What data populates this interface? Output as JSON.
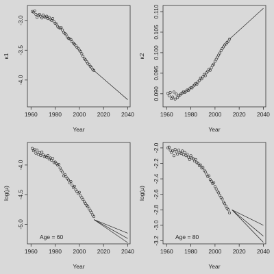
{
  "chart_data": [
    {
      "type": "scatter",
      "xlabel": "Year",
      "ylabel": "κ1",
      "xlim": [
        1957,
        2042
      ],
      "ylim": [
        -4.45,
        -2.75
      ],
      "xticks": [
        1960,
        1980,
        2000,
        2020,
        2040
      ],
      "yticks": [
        -3.0,
        -3.5,
        -4.0
      ],
      "ytick_labels": [
        "-3.0",
        "-3.5",
        "-4.0"
      ],
      "series": [
        {
          "kind": "points",
          "x": [
            1961,
            1962,
            1963,
            1964,
            1965,
            1966,
            1967,
            1968,
            1969,
            1970,
            1971,
            1972,
            1973,
            1974,
            1975,
            1976,
            1977,
            1978,
            1979,
            1980,
            1981,
            1982,
            1983,
            1984,
            1985,
            1986,
            1987,
            1988,
            1989,
            1990,
            1991,
            1992,
            1993,
            1994,
            1995,
            1996,
            1997,
            1998,
            1999,
            2000,
            2001,
            2002,
            2003,
            2004,
            2005,
            2006,
            2007,
            2008,
            2009,
            2010,
            2011,
            2012
          ],
          "y": [
            -2.85,
            -2.86,
            -2.84,
            -2.9,
            -2.95,
            -2.92,
            -2.9,
            -2.93,
            -2.96,
            -2.91,
            -2.94,
            -2.95,
            -2.93,
            -2.97,
            -2.95,
            -2.98,
            -3.0,
            -2.97,
            -3.02,
            -3.05,
            -3.06,
            -3.1,
            -3.12,
            -3.13,
            -3.12,
            -3.16,
            -3.2,
            -3.22,
            -3.24,
            -3.28,
            -3.3,
            -3.31,
            -3.32,
            -3.36,
            -3.38,
            -3.4,
            -3.42,
            -3.45,
            -3.47,
            -3.5,
            -3.52,
            -3.56,
            -3.6,
            -3.64,
            -3.66,
            -3.69,
            -3.72,
            -3.74,
            -3.77,
            -3.79,
            -3.82,
            -3.84
          ]
        },
        {
          "kind": "line",
          "x": [
            2012,
            2040
          ],
          "y": [
            -3.84,
            -4.33
          ]
        }
      ]
    },
    {
      "type": "scatter",
      "xlabel": "Year",
      "ylabel": "κ2",
      "xlim": [
        1957,
        2042
      ],
      "ylim": [
        0.0868,
        0.1115
      ],
      "xticks": [
        1960,
        1980,
        2000,
        2020,
        2040
      ],
      "yticks": [
        0.09,
        0.095,
        0.1,
        0.105,
        0.11
      ],
      "ytick_labels": [
        "0.090",
        "0.095",
        "0.100",
        "0.105",
        "0.110"
      ],
      "series": [
        {
          "kind": "points",
          "x": [
            1961,
            1962,
            1963,
            1964,
            1965,
            1966,
            1967,
            1968,
            1969,
            1970,
            1971,
            1972,
            1973,
            1974,
            1975,
            1976,
            1977,
            1978,
            1979,
            1980,
            1981,
            1982,
            1983,
            1984,
            1985,
            1986,
            1987,
            1988,
            1989,
            1990,
            1991,
            1992,
            1993,
            1994,
            1995,
            1996,
            1997,
            1998,
            1999,
            2000,
            2001,
            2002,
            2003,
            2004,
            2005,
            2006,
            2007,
            2008,
            2009,
            2010,
            2011,
            2012
          ],
          "y": [
            0.0901,
            0.0895,
            0.0903,
            0.0888,
            0.0892,
            0.0904,
            0.0887,
            0.0899,
            0.0891,
            0.0895,
            0.0897,
            0.09,
            0.0902,
            0.0905,
            0.0903,
            0.0906,
            0.0909,
            0.0908,
            0.0912,
            0.0915,
            0.0914,
            0.0919,
            0.0921,
            0.0925,
            0.0923,
            0.0929,
            0.0932,
            0.0938,
            0.0936,
            0.0941,
            0.0947,
            0.0944,
            0.0951,
            0.0955,
            0.096,
            0.0957,
            0.0963,
            0.0969,
            0.0972,
            0.0979,
            0.0984,
            0.0989,
            0.0994,
            0.0999,
            0.1005,
            0.101,
            0.1014,
            0.1019,
            0.1021,
            0.1025,
            0.1028,
            0.1033
          ]
        },
        {
          "kind": "line",
          "x": [
            2012,
            2040
          ],
          "y": [
            0.1033,
            0.1108
          ]
        }
      ]
    },
    {
      "type": "scatter",
      "xlabel": "Year",
      "ylabel": "log(μ)",
      "annotation": "Age = 60",
      "xlim": [
        1957,
        2042
      ],
      "ylim": [
        -5.33,
        -3.62
      ],
      "xticks": [
        1960,
        1980,
        2000,
        2020,
        2040
      ],
      "yticks": [
        -4.0,
        -4.5,
        -5.0
      ],
      "ytick_labels": [
        "-4.0",
        "-4.5",
        "-5.0"
      ],
      "series": [
        {
          "kind": "points",
          "x": [
            1961,
            1962,
            1963,
            1964,
            1965,
            1966,
            1967,
            1968,
            1969,
            1970,
            1971,
            1972,
            1973,
            1974,
            1975,
            1976,
            1977,
            1978,
            1979,
            1980,
            1981,
            1982,
            1983,
            1984,
            1985,
            1986,
            1987,
            1988,
            1989,
            1990,
            1991,
            1992,
            1993,
            1994,
            1995,
            1996,
            1997,
            1998,
            1999,
            2000,
            2001,
            2002,
            2003,
            2004,
            2005,
            2006,
            2007,
            2008,
            2009,
            2010,
            2011,
            2012
          ],
          "y": [
            -3.72,
            -3.76,
            -3.74,
            -3.8,
            -3.75,
            -3.82,
            -3.79,
            -3.84,
            -3.78,
            -3.83,
            -3.86,
            -3.85,
            -3.87,
            -3.84,
            -3.9,
            -3.88,
            -3.92,
            -3.89,
            -3.96,
            -3.95,
            -3.98,
            -4.0,
            -3.99,
            -4.05,
            -4.09,
            -4.12,
            -4.18,
            -4.16,
            -4.2,
            -4.23,
            -4.25,
            -4.3,
            -4.28,
            -4.34,
            -4.38,
            -4.36,
            -4.42,
            -4.45,
            -4.48,
            -4.46,
            -4.52,
            -4.55,
            -4.58,
            -4.62,
            -4.65,
            -4.68,
            -4.7,
            -4.74,
            -4.77,
            -4.8,
            -4.84,
            -4.87
          ]
        },
        {
          "kind": "line",
          "x": [
            2012,
            2040
          ],
          "y": [
            -4.92,
            -5.15
          ]
        },
        {
          "kind": "line",
          "x": [
            2012,
            2040
          ],
          "y": [
            -4.92,
            -5.24
          ]
        },
        {
          "kind": "line",
          "x": [
            2012,
            2040
          ],
          "y": [
            -4.92,
            -5.31
          ]
        }
      ]
    },
    {
      "type": "scatter",
      "xlabel": "Year",
      "ylabel": "log(μ)",
      "annotation": "Age = 80",
      "xlim": [
        1957,
        2042
      ],
      "ylim": [
        -3.24,
        -1.93
      ],
      "xticks": [
        1960,
        1980,
        2000,
        2020,
        2040
      ],
      "yticks": [
        -2.0,
        -2.2,
        -2.4,
        -2.6,
        -2.8,
        -3.0,
        -3.2
      ],
      "ytick_labels": [
        "-2.0",
        "-2.2",
        "-2.4",
        "-2.6",
        "-2.8",
        "-3.0",
        "-3.2"
      ],
      "series": [
        {
          "kind": "points",
          "x": [
            1961,
            1962,
            1963,
            1964,
            1965,
            1966,
            1967,
            1968,
            1969,
            1970,
            1971,
            1972,
            1973,
            1974,
            1975,
            1976,
            1977,
            1978,
            1979,
            1980,
            1981,
            1982,
            1983,
            1984,
            1985,
            1986,
            1987,
            1988,
            1989,
            1990,
            1991,
            1992,
            1993,
            1994,
            1995,
            1996,
            1997,
            1998,
            1999,
            2000,
            2001,
            2002,
            2003,
            2004,
            2005,
            2006,
            2007,
            2008,
            2009,
            2010,
            2011,
            2012
          ],
          "y": [
            -2.0,
            -1.99,
            -2.03,
            -2.06,
            -2.04,
            -2.1,
            -2.02,
            -2.05,
            -2.08,
            -2.03,
            -2.06,
            -2.07,
            -2.04,
            -2.09,
            -2.06,
            -2.1,
            -2.08,
            -2.12,
            -2.15,
            -2.1,
            -2.13,
            -2.14,
            -2.17,
            -2.15,
            -2.19,
            -2.2,
            -2.23,
            -2.22,
            -2.26,
            -2.25,
            -2.29,
            -2.31,
            -2.34,
            -2.37,
            -2.36,
            -2.41,
            -2.43,
            -2.46,
            -2.45,
            -2.5,
            -2.53,
            -2.56,
            -2.58,
            -2.61,
            -2.64,
            -2.66,
            -2.7,
            -2.72,
            -2.75,
            -2.78,
            -2.8,
            -2.84
          ]
        },
        {
          "kind": "line",
          "x": [
            2014,
            2040
          ],
          "y": [
            -2.8,
            -3.0
          ]
        },
        {
          "kind": "line",
          "x": [
            2014,
            2040
          ],
          "y": [
            -2.8,
            -3.14
          ]
        },
        {
          "kind": "line",
          "x": [
            2014,
            2040
          ],
          "y": [
            -2.8,
            -3.22
          ]
        }
      ]
    }
  ]
}
